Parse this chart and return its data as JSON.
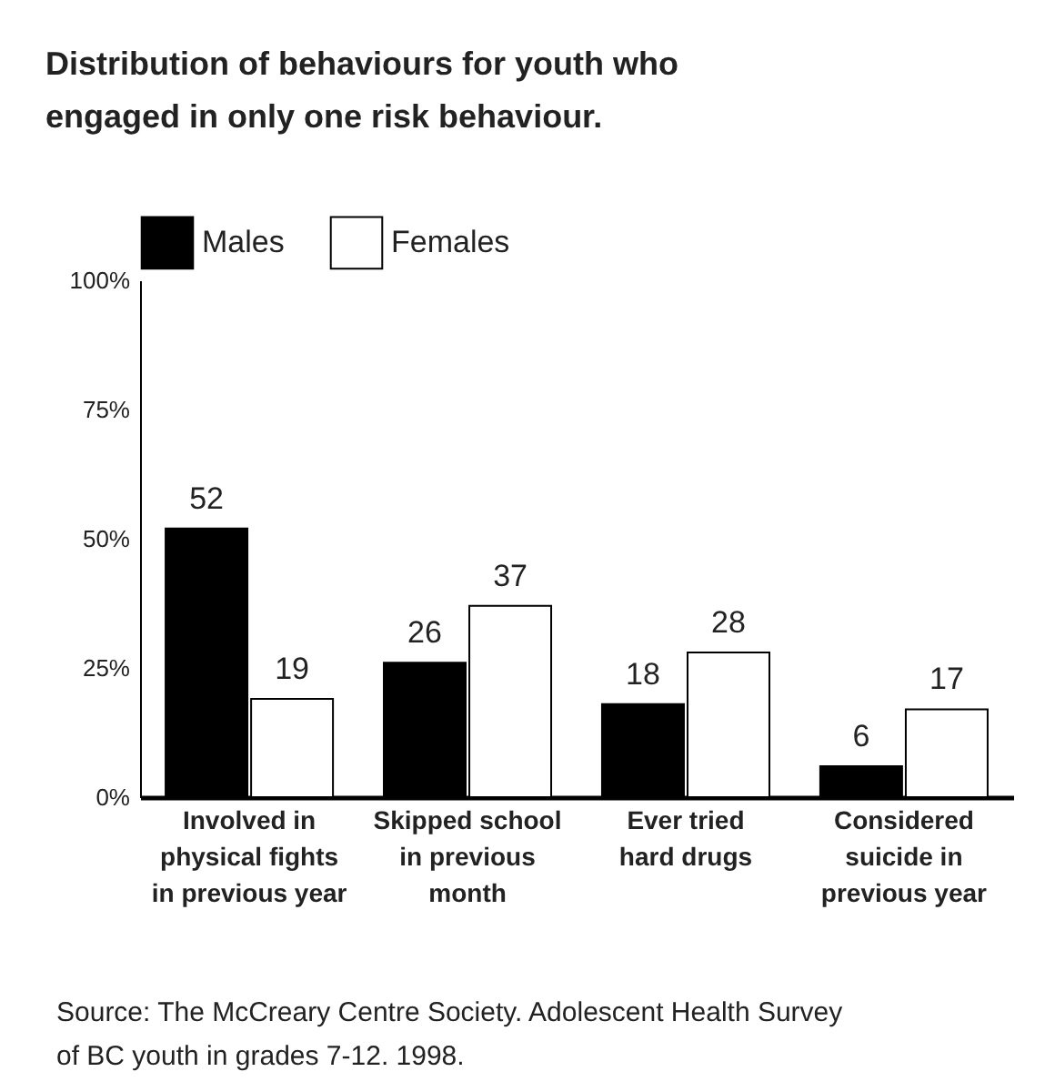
{
  "chart_data": {
    "type": "bar",
    "title": "Distribution of behaviours for youth who engaged in only one risk behaviour.",
    "categories": [
      "Involved in physical fights in previous year",
      "Skipped school in previous month",
      "Ever tried hard drugs",
      "Considered suicide in previous year"
    ],
    "series": [
      {
        "name": "Males",
        "color": "#000000",
        "values": [
          52,
          26,
          18,
          6
        ]
      },
      {
        "name": "Females",
        "color": "#ffffff",
        "values": [
          19,
          37,
          28,
          17
        ]
      }
    ],
    "ylim": [
      0,
      100
    ],
    "yticks": [
      {
        "value": 0,
        "label": "0%"
      },
      {
        "value": 25,
        "label": "25%"
      },
      {
        "value": 50,
        "label": "50%"
      },
      {
        "value": 75,
        "label": "75%"
      },
      {
        "value": 100,
        "label": "100%"
      }
    ],
    "data_labels": true,
    "legend": "top left",
    "annotations": [
      "Source: The McCreary Centre Society. Adolescent Health Survey of BC youth in grades 7-12. 1998."
    ]
  }
}
